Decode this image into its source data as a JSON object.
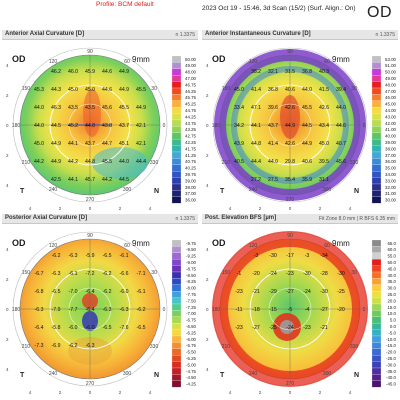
{
  "header": {
    "profile": "Profile: BCM default",
    "scan": "2023 Oct 19 - 15:46, 3d Scan (15/2) (Surf. Align.: On)",
    "eye": "OD"
  },
  "panels": [
    {
      "title": "Anterior Axial Curvature [D]",
      "right_label": "n 1.3375",
      "eye": "OD",
      "zone": "9mm",
      "palette": "warm",
      "map_values": [
        "46.2",
        "46.0",
        "45.9",
        "44.6",
        "44.9",
        "45.3",
        "44.3",
        "45.0",
        "45.0",
        "44.6",
        "44.9",
        "45.5",
        "44.0",
        "46.3",
        "43.5",
        "43.5",
        "45.6",
        "45.5",
        "44.9",
        "44.0",
        "44.5",
        "45.2",
        "44.8",
        "43.8",
        "43.7",
        "42.1",
        "45.0",
        "44.9",
        "44.1",
        "43.7",
        "44.7",
        "45.1",
        "42.1",
        "44.2",
        "44.9",
        "44.2",
        "44.8",
        "45.5",
        "44.0",
        "44.4",
        "42.5",
        "44.1",
        "45.7",
        "44.2",
        "44.5"
      ],
      "scale": [
        "50.00",
        "49.00",
        "48.00",
        "47.00",
        "46.75",
        "46.25",
        "45.75",
        "45.25",
        "44.75",
        "44.25",
        "43.75",
        "43.25",
        "42.75",
        "42.25",
        "41.75",
        "41.25",
        "40.75",
        "40.25",
        "39.75",
        "39.00",
        "38.00",
        "37.00",
        "36.00"
      ]
    },
    {
      "title": "Anterior Instantaneous Curvature [D]",
      "right_label": "n 1.3375",
      "eye": "OD",
      "zone": "9mm",
      "palette": "warm",
      "map_values": [
        "38.2",
        "32.1",
        "31.5",
        "36.8",
        "40.3",
        "45.0",
        "41.4",
        "36.8",
        "40.6",
        "44.0",
        "41.5",
        "39.4",
        "33.4",
        "47.1",
        "39.6",
        "42.6",
        "45.5",
        "42.6",
        "44.0",
        "34.2",
        "44.1",
        "43.7",
        "44.9",
        "44.5",
        "43.4",
        "44.6",
        "43.9",
        "44.8",
        "41.4",
        "42.6",
        "44.9",
        "45.0",
        "40.7",
        "40.5",
        "44.4",
        "44.0",
        "29.8",
        "40.6",
        "39.5",
        "45.6",
        "27.2",
        "27.5",
        "35.4",
        "35.9",
        "31.1"
      ],
      "scale": [
        "53.00",
        "51.00",
        "50.00",
        "49.00",
        "48.00",
        "47.00",
        "46.00",
        "45.00",
        "44.00",
        "43.00",
        "42.00",
        "41.00",
        "40.00",
        "39.00",
        "38.00",
        "37.00",
        "36.00",
        "35.00",
        "34.00",
        "33.00",
        "32.00",
        "31.00",
        "30.00"
      ]
    },
    {
      "title": "Posterior Axial Curvature [D]",
      "right_label": "n 1.3375",
      "eye": "OD",
      "zone": "9mm",
      "palette": "cool",
      "map_values": [
        "-6.2",
        "-6.3",
        "-5.9",
        "-6.5",
        "-6.1",
        "-6.7",
        "-6.3",
        "-6.1",
        "-7.2",
        "-6.2",
        "-6.6",
        "-7.1",
        "-6.8",
        "-6.5",
        "-7.0",
        "-6.4",
        "-6.2",
        "-6.0",
        "-6.1",
        "-6.3",
        "-7.9",
        "-7.7",
        "-6.4",
        "-6.3",
        "-6.3",
        "-6.2",
        "-6.4",
        "-5.8",
        "-6.0",
        "-6.0",
        "-6.5",
        "-7.6",
        "-6.5",
        "-7.3",
        "-6.9",
        "-6.2",
        "-6.3"
      ],
      "scale": [
        "-9.75",
        "-9.50",
        "-9.25",
        "-9.00",
        "-8.75",
        "-8.50",
        "-8.25",
        "-8.00",
        "-7.75",
        "-7.50",
        "-7.25",
        "-7.00",
        "-6.75",
        "-6.50",
        "-6.25",
        "-6.00",
        "-5.75",
        "-5.50",
        "-5.25",
        "-5.00",
        "-4.75",
        "-4.50",
        "-4.25"
      ]
    },
    {
      "title": "Post. Elevation BFS [µm]",
      "right_label": "Fit Zone 8.0 mm | R BFS 6.35 mm",
      "eye": "OD",
      "zone": "9mm",
      "palette": "elev",
      "map_values": [
        "-3",
        "-30",
        "-17",
        "-3",
        "-34",
        "-1",
        "-20",
        "-24",
        "-23",
        "-30",
        "-28",
        "-30",
        "-23",
        "-21",
        "-29",
        "-27",
        "-24",
        "-30",
        "-25",
        "-11",
        "-18",
        "-15",
        "-5",
        "-4",
        "-27",
        "-20",
        "-23",
        "-27",
        "-25",
        "-24",
        "-23",
        "-21"
      ],
      "scale": [
        "65.0",
        "60.0",
        "55.0",
        "50.0",
        "45.0",
        "40.0",
        "35.0",
        "30.0",
        "25.0",
        "20.0",
        "15.0",
        "10.0",
        "5.0",
        "0.0",
        "-5.0",
        "-10.0",
        "-15.0",
        "-20.0",
        "-25.0",
        "-30.0",
        "-35.0",
        "-40.0",
        "-45.0"
      ]
    }
  ],
  "axis_labels": {
    "top": "90",
    "bottom": "270",
    "left": "180",
    "right": "0",
    "angles": [
      "120",
      "150",
      "60",
      "30",
      "210",
      "240",
      "300",
      "330"
    ],
    "mm_ticks": [
      "4",
      "2",
      "0",
      "2",
      "4"
    ],
    "temporal": "T",
    "nasal": "N"
  }
}
